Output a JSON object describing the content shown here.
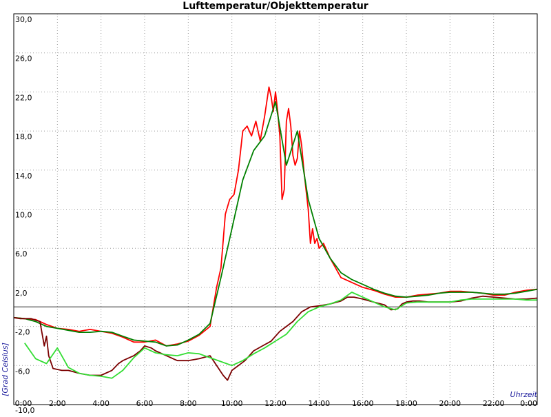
{
  "chart_data": {
    "type": "line",
    "title": "Lufttemperatur/Objekttemperatur",
    "xlabel": "Uhrzeit",
    "ylabel": "[Grad Celsius]",
    "xlim": [
      0,
      24
    ],
    "ylim": [
      -10,
      30
    ],
    "x_ticks": [
      {
        "value": 0,
        "label": "0:00"
      },
      {
        "value": 2,
        "label": "2:00"
      },
      {
        "value": 4,
        "label": "4:00"
      },
      {
        "value": 6,
        "label": "6:00"
      },
      {
        "value": 8,
        "label": "8:00"
      },
      {
        "value": 10,
        "label": "10:00"
      },
      {
        "value": 12,
        "label": "12:00"
      },
      {
        "value": 14,
        "label": "14:00"
      },
      {
        "value": 16,
        "label": "16:00"
      },
      {
        "value": 18,
        "label": "18:00"
      },
      {
        "value": 20,
        "label": "20:00"
      },
      {
        "value": 22,
        "label": "22:00"
      },
      {
        "value": 24,
        "label": "0:00"
      }
    ],
    "y_ticks": [
      {
        "value": 30,
        "label": "30,0"
      },
      {
        "value": 26,
        "label": "26,0"
      },
      {
        "value": 22,
        "label": "22,0"
      },
      {
        "value": 18,
        "label": "18,0"
      },
      {
        "value": 14,
        "label": "14,0"
      },
      {
        "value": 10,
        "label": "10,0"
      },
      {
        "value": 6,
        "label": "6,0"
      },
      {
        "value": 2,
        "label": "2,0"
      },
      {
        "value": -2,
        "label": "-2,0"
      },
      {
        "value": -6,
        "label": "-6,0"
      },
      {
        "value": -10,
        "label": "-10,0"
      }
    ],
    "reference_line_y": 0,
    "grid": true,
    "series": [
      {
        "color": "#ff0000",
        "x": [
          0,
          0.5,
          1.0,
          1.5,
          2.0,
          2.5,
          3.0,
          3.5,
          4.0,
          4.5,
          5.0,
          5.5,
          6.0,
          6.5,
          7.0,
          7.5,
          8.0,
          8.5,
          9.0,
          9.3,
          9.5,
          9.7,
          9.9,
          10.1,
          10.3,
          10.5,
          10.7,
          10.9,
          11.1,
          11.3,
          11.5,
          11.7,
          11.8,
          11.9,
          12.0,
          12.1,
          12.2,
          12.3,
          12.4,
          12.5,
          12.6,
          12.7,
          12.8,
          12.9,
          13.0,
          13.1,
          13.2,
          13.3,
          13.4,
          13.5,
          13.6,
          13.7,
          13.8,
          13.9,
          14.0,
          14.2,
          14.5,
          15.0,
          15.5,
          16.0,
          16.5,
          17.0,
          17.5,
          18.0,
          18.5,
          19.0,
          19.5,
          20.0,
          20.5,
          21.0,
          21.5,
          22.0,
          22.5,
          23.0,
          23.5,
          24.0
        ],
        "y": [
          -1.1,
          -1.2,
          -1.3,
          -1.8,
          -2.2,
          -2.3,
          -2.5,
          -2.3,
          -2.5,
          -2.7,
          -3.1,
          -3.6,
          -3.6,
          -3.4,
          -4.0,
          -3.8,
          -3.5,
          -2.9,
          -2.0,
          2.0,
          4.0,
          9.5,
          11.0,
          11.5,
          14.0,
          18.0,
          18.5,
          17.5,
          19.0,
          17.0,
          19.5,
          22.5,
          21.5,
          20.0,
          22.0,
          20.0,
          17.5,
          11.0,
          12.0,
          19.0,
          20.3,
          18.5,
          15.5,
          14.5,
          15.2,
          18.0,
          16.5,
          14.0,
          12.0,
          10.0,
          6.5,
          8.0,
          6.5,
          7.0,
          6.0,
          6.5,
          5.0,
          3.0,
          2.5,
          2.0,
          1.7,
          1.3,
          1.0,
          1.0,
          1.2,
          1.3,
          1.4,
          1.6,
          1.6,
          1.5,
          1.4,
          1.2,
          1.2,
          1.5,
          1.7,
          1.8
        ]
      },
      {
        "color": "#008000",
        "x": [
          0,
          0.5,
          1.0,
          1.5,
          2.0,
          2.5,
          3.0,
          3.5,
          4.0,
          4.5,
          5.0,
          5.5,
          6.0,
          6.5,
          7.0,
          7.5,
          8.0,
          8.5,
          9.0,
          9.5,
          10.0,
          10.5,
          11.0,
          11.5,
          12.0,
          12.5,
          13.0,
          13.5,
          14.0,
          14.5,
          15.0,
          15.5,
          16.0,
          16.5,
          17.0,
          17.5,
          18.0,
          18.5,
          19.0,
          19.5,
          20.0,
          20.5,
          21.0,
          21.5,
          22.0,
          22.5,
          23.0,
          23.5,
          24.0
        ],
        "y": [
          -1.1,
          -1.2,
          -1.5,
          -2.0,
          -2.2,
          -2.4,
          -2.6,
          -2.6,
          -2.5,
          -2.6,
          -3.0,
          -3.4,
          -3.5,
          -3.6,
          -4.0,
          -3.9,
          -3.4,
          -2.8,
          -1.7,
          3.0,
          8.0,
          13.0,
          16.0,
          17.5,
          21.0,
          14.5,
          18.0,
          11.0,
          7.0,
          5.0,
          3.5,
          2.8,
          2.3,
          1.8,
          1.4,
          1.1,
          1.0,
          1.1,
          1.2,
          1.4,
          1.5,
          1.5,
          1.5,
          1.4,
          1.3,
          1.3,
          1.4,
          1.6,
          1.8
        ]
      },
      {
        "color": "#7b0000",
        "x": [
          0,
          0.3,
          0.8,
          1.2,
          1.4,
          1.5,
          1.6,
          1.8,
          2.2,
          2.5,
          3.0,
          3.5,
          4.0,
          4.5,
          4.8,
          5.0,
          5.5,
          5.8,
          6.0,
          6.3,
          6.5,
          7.0,
          7.5,
          8.0,
          8.5,
          9.0,
          9.3,
          9.6,
          9.8,
          10.0,
          10.3,
          10.6,
          11.0,
          11.4,
          11.8,
          12.2,
          12.5,
          12.8,
          13.2,
          13.6,
          14.0,
          14.5,
          15.0,
          15.3,
          15.6,
          16.0,
          16.5,
          17.0,
          17.3,
          17.6,
          17.8,
          18.0,
          18.3,
          18.6,
          19.0,
          19.5,
          20.0,
          20.5,
          21.0,
          21.5,
          22.0,
          22.5,
          23.0,
          23.5,
          24.0
        ],
        "y": [
          -1.1,
          -1.2,
          -1.2,
          -1.5,
          -4.0,
          -3.0,
          -5.0,
          -6.3,
          -6.5,
          -6.5,
          -6.8,
          -7.0,
          -7.0,
          -6.5,
          -5.8,
          -5.5,
          -5.0,
          -4.5,
          -4.0,
          -4.2,
          -4.5,
          -5.0,
          -5.5,
          -5.5,
          -5.3,
          -5.0,
          -6.0,
          -7.0,
          -7.5,
          -6.5,
          -6.0,
          -5.5,
          -4.5,
          -4.0,
          -3.5,
          -2.5,
          -2.0,
          -1.5,
          -0.5,
          0.0,
          0.1,
          0.3,
          0.6,
          1.0,
          1.0,
          0.8,
          0.5,
          0.2,
          -0.3,
          -0.2,
          0.3,
          0.5,
          0.6,
          0.6,
          0.5,
          0.5,
          0.5,
          0.6,
          0.9,
          1.1,
          1.0,
          0.9,
          0.8,
          0.8,
          0.9
        ]
      },
      {
        "color": "#33dd33",
        "x": [
          0,
          0.5,
          1.0,
          1.5,
          2.0,
          2.5,
          3.0,
          3.5,
          4.0,
          4.5,
          5.0,
          5.5,
          6.0,
          6.5,
          7.0,
          7.5,
          8.0,
          8.5,
          9.0,
          9.5,
          10.0,
          10.5,
          11.0,
          11.5,
          12.0,
          12.5,
          13.0,
          13.5,
          14.0,
          14.5,
          15.0,
          15.5,
          16.0,
          16.5,
          17.0,
          17.5,
          18.0,
          18.5,
          19.0,
          19.5,
          20.0,
          20.5,
          21.0,
          21.5,
          22.0,
          22.5,
          23.0,
          23.5,
          24.0
        ],
        "y": [
          null,
          -3.7,
          -5.3,
          -5.8,
          -4.2,
          -6.2,
          -6.8,
          -7.0,
          -7.1,
          -7.3,
          -6.5,
          -5.2,
          -4.2,
          -4.7,
          -4.9,
          -5.0,
          -4.7,
          -4.8,
          -5.2,
          -5.6,
          -6.0,
          -5.5,
          -4.8,
          -4.2,
          -3.5,
          -2.8,
          -1.5,
          -0.5,
          0.0,
          0.3,
          0.7,
          1.5,
          1.0,
          0.5,
          0.0,
          -0.3,
          0.4,
          0.5,
          0.5,
          0.5,
          0.5,
          0.7,
          0.8,
          0.8,
          0.8,
          0.8,
          0.8,
          0.7,
          0.7
        ]
      }
    ]
  }
}
